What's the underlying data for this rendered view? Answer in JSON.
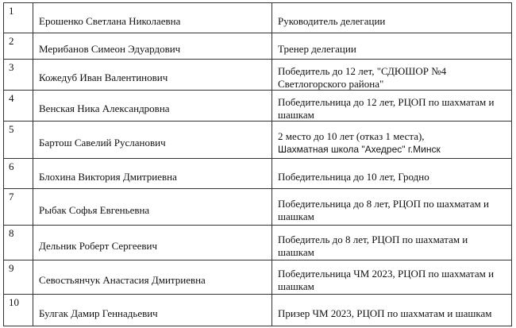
{
  "rows": [
    {
      "num": "1",
      "name": "Ерошенко Светлана Николаевна",
      "info": [
        "Руководитель делегации"
      ]
    },
    {
      "num": "2",
      "name": "Мерибанов Симеон Эдуардович",
      "info": [
        "Тренер делегации"
      ]
    },
    {
      "num": "3",
      "name": "Кожедуб Иван Валентинович",
      "info": [
        "Победитель до 12 лет, \"СДЮШОР №4",
        "Светлогорского района\""
      ]
    },
    {
      "num": "4",
      "name": "Венская Ника Александровна",
      "info": [
        "Победительница до 12 лет, РЦОП по шахматам и",
        "шашкам"
      ]
    },
    {
      "num": "5",
      "name": "Бартош Савелий Русланович",
      "info": [
        "2 место до 10 лет (отказ 1 места),",
        "Шахматная школа  \"Ахедрес\" г.Минск"
      ]
    },
    {
      "num": "6",
      "name": "Блохина Виктория Дмитриевна",
      "info": [
        "Победительница до 10 лет,  Гродно"
      ]
    },
    {
      "num": "7",
      "name": "Рыбак Софья Евгеньевна",
      "info": [
        "Победительница до 8 лет, РЦОП по шахматам и",
        "шашкам"
      ]
    },
    {
      "num": "8",
      "name": "Дельник Роберт Сергеевич",
      "info": [
        "Победитель до 8 лет, РЦОП по шахматам и",
        "шашкам"
      ]
    },
    {
      "num": "9",
      "name": "Севостьянчук Анастасия Дмитриевна",
      "info": [
        "Победительница ЧМ 2023, РЦОП по шахматам и",
        "шашкам"
      ]
    },
    {
      "num": "10",
      "name": "Булгак Дамир Геннадьевич",
      "info": [
        "Призер ЧМ 2023, РЦОП по шахматам и шашкам"
      ]
    }
  ]
}
